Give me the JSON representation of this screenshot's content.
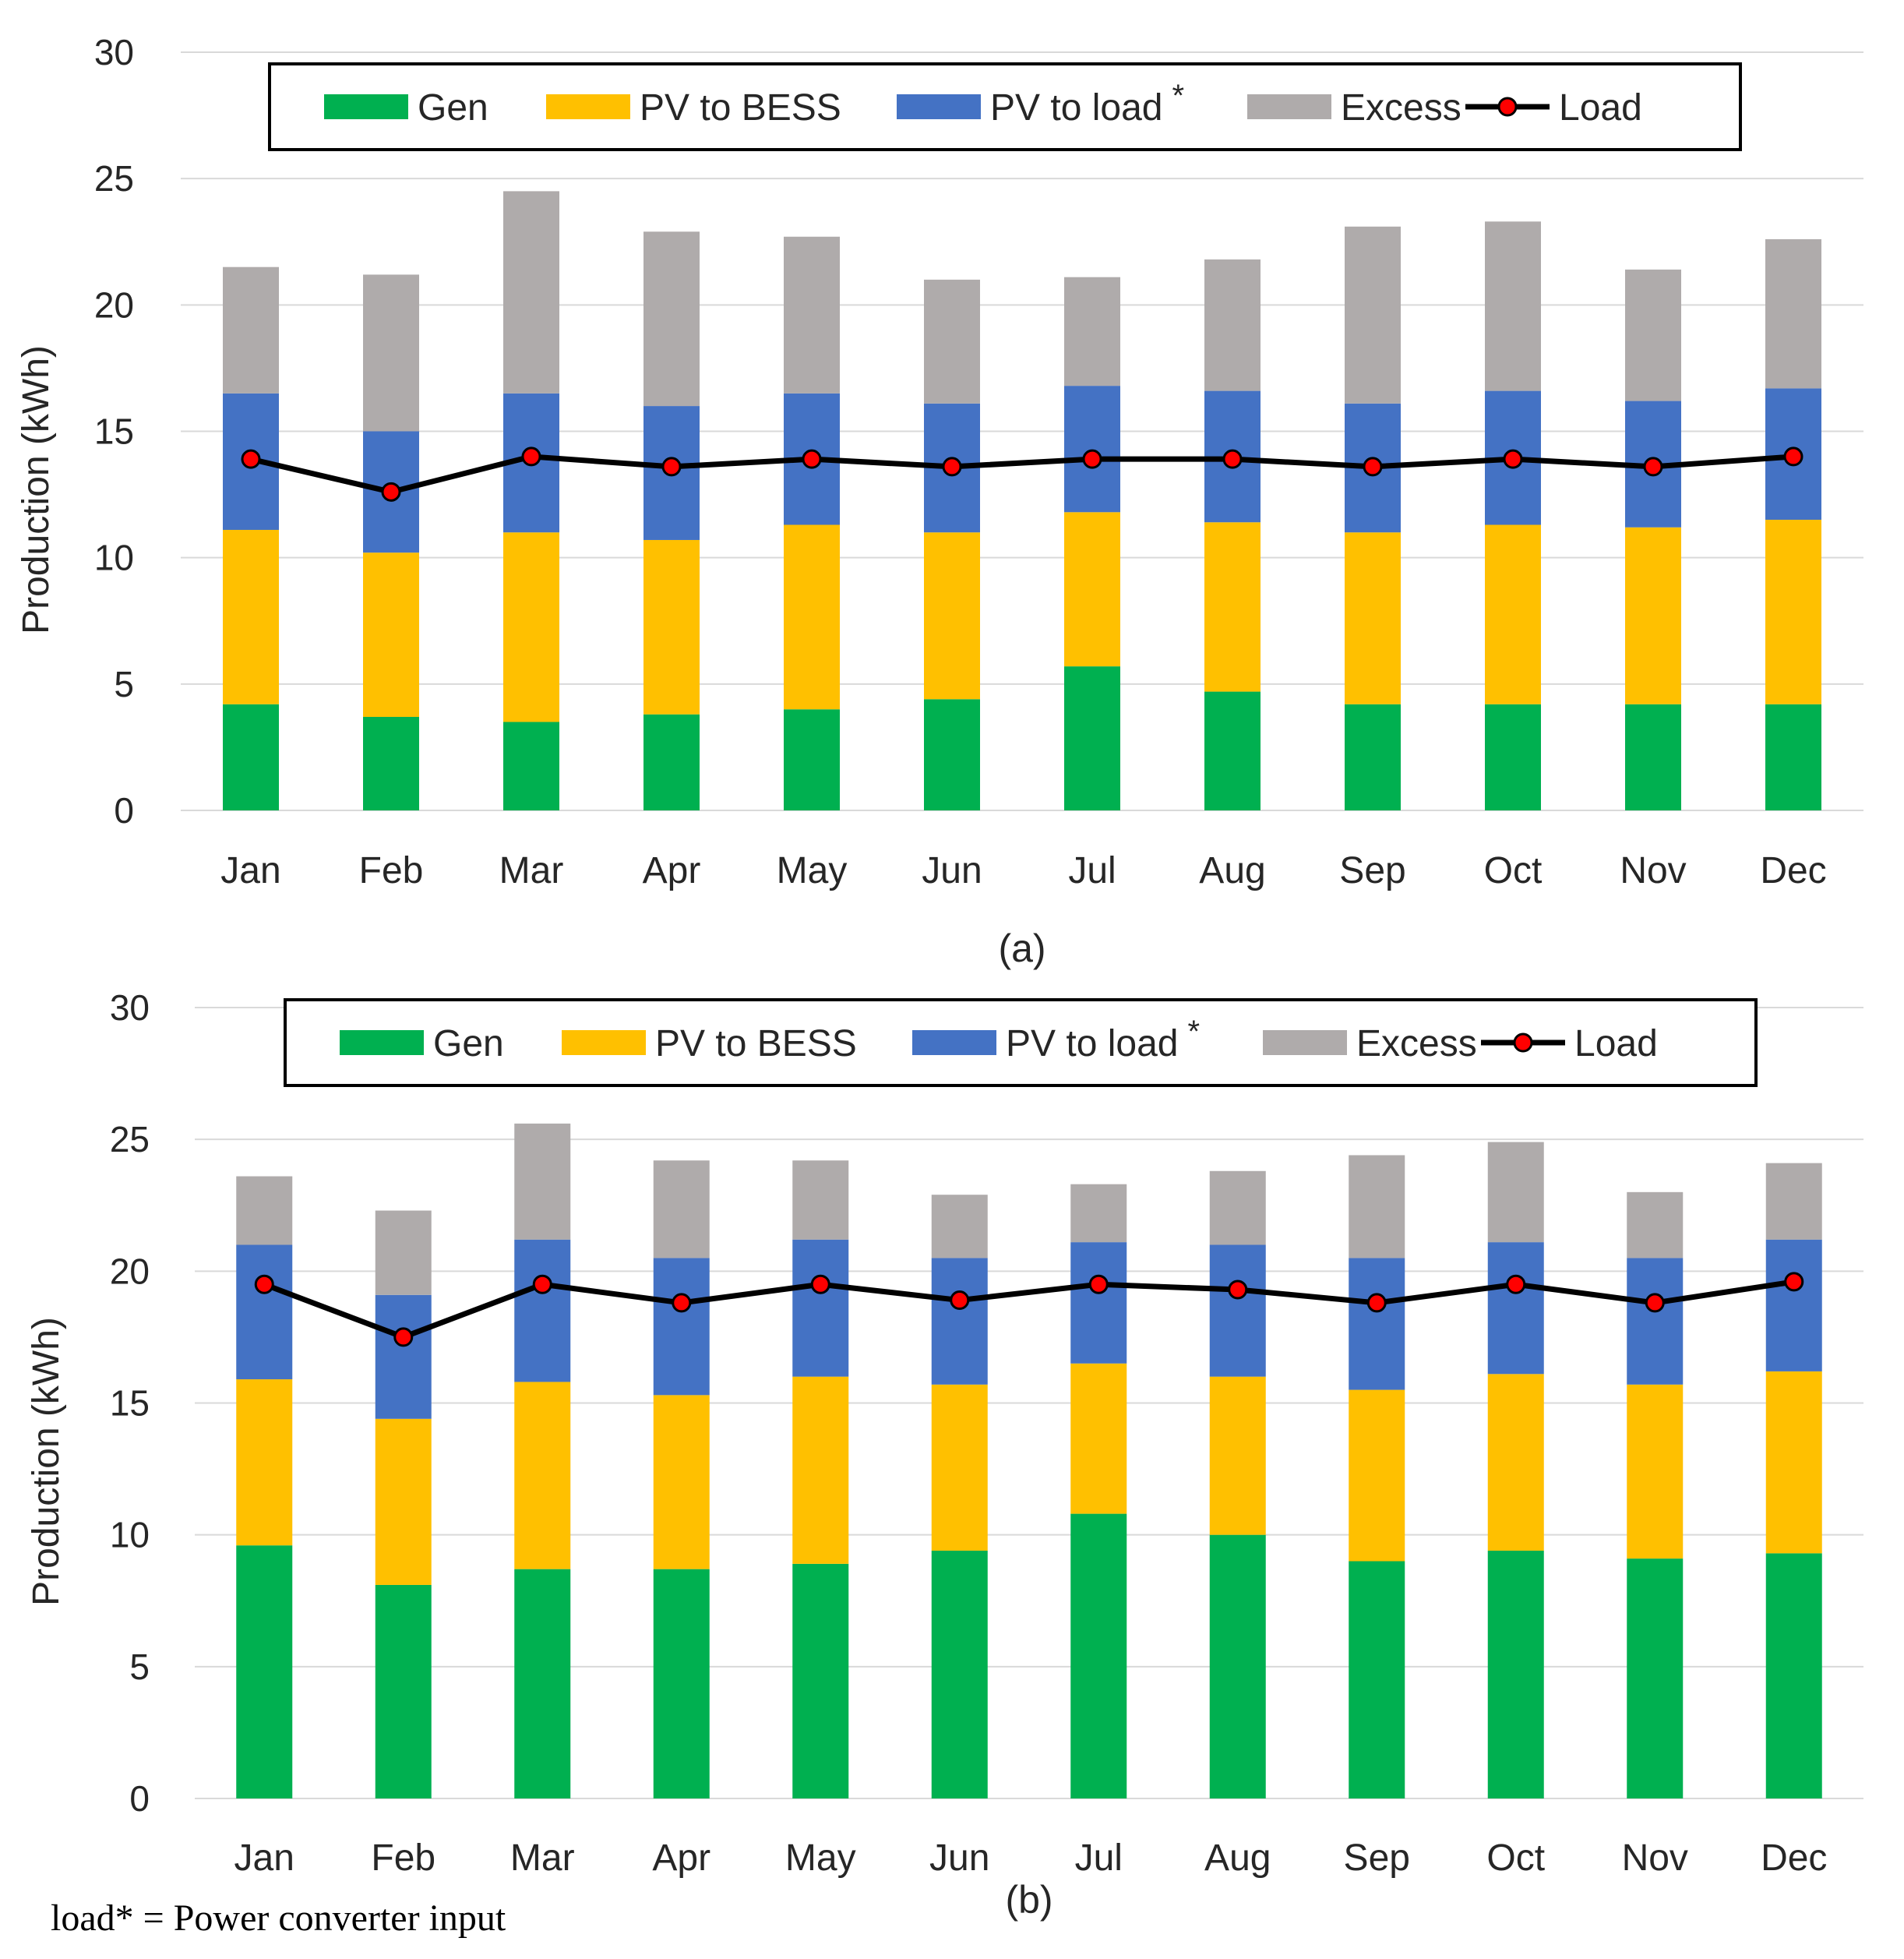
{
  "colors": {
    "gen": "#00b050",
    "pv_to_bess": "#ffc000",
    "pv_to_load": "#4472c4",
    "excess": "#afabab",
    "load_line": "#000000",
    "load_marker": "#ff0000",
    "grid": "#d9d9d9"
  },
  "footnote": "load* = Power converter input",
  "chart_data": [
    {
      "type": "bar",
      "stacked": true,
      "caption": "(a)",
      "ylabel": "Production (kWh)",
      "ylim": [
        0,
        30
      ],
      "yticks": [
        "0",
        "5",
        "10",
        "15",
        "20",
        "25",
        "30"
      ],
      "grid": true,
      "legend_position": "top",
      "legend": [
        {
          "label": "Gen",
          "key": "gen",
          "kind": "box"
        },
        {
          "label": "PV to BESS",
          "key": "pv_to_bess",
          "kind": "box"
        },
        {
          "label": "PV to load",
          "key": "pv_to_load",
          "kind": "box",
          "superscript": "*"
        },
        {
          "label": "Excess",
          "key": "excess",
          "kind": "box"
        },
        {
          "label": "Load",
          "key": "load",
          "kind": "line"
        }
      ],
      "categories": [
        "Jan",
        "Feb",
        "Mar",
        "Apr",
        "May",
        "Jun",
        "Jul",
        "Aug",
        "Sep",
        "Oct",
        "Nov",
        "Dec"
      ],
      "series": [
        {
          "name": "Gen",
          "key": "gen",
          "values": [
            4.2,
            3.7,
            3.5,
            3.8,
            4.0,
            4.4,
            5.7,
            4.7,
            4.2,
            4.2,
            4.2,
            4.2
          ]
        },
        {
          "name": "PV to BESS",
          "key": "pv_to_bess",
          "values": [
            6.9,
            6.5,
            7.5,
            6.9,
            7.3,
            6.6,
            6.1,
            6.7,
            6.8,
            7.1,
            7.0,
            7.3
          ]
        },
        {
          "name": "PV to load",
          "key": "pv_to_load",
          "values": [
            5.4,
            4.8,
            5.5,
            5.3,
            5.2,
            5.1,
            5.0,
            5.2,
            5.1,
            5.3,
            5.0,
            5.2
          ]
        },
        {
          "name": "Excess",
          "key": "excess",
          "values": [
            5.0,
            6.2,
            8.0,
            6.9,
            6.2,
            4.9,
            4.3,
            5.2,
            7.0,
            6.7,
            5.2,
            5.9
          ]
        }
      ],
      "line": {
        "name": "Load",
        "values": [
          13.9,
          12.6,
          14.0,
          13.6,
          13.9,
          13.6,
          13.9,
          13.9,
          13.6,
          13.9,
          13.6,
          14.0
        ]
      }
    },
    {
      "type": "bar",
      "stacked": true,
      "caption": "(b)",
      "ylabel": "Production (kWh)",
      "ylim": [
        0,
        30
      ],
      "yticks": [
        "0",
        "5",
        "10",
        "15",
        "20",
        "25",
        "30"
      ],
      "grid": true,
      "legend_position": "top",
      "legend": [
        {
          "label": "Gen",
          "key": "gen",
          "kind": "box"
        },
        {
          "label": "PV to BESS",
          "key": "pv_to_bess",
          "kind": "box"
        },
        {
          "label": "PV to load",
          "key": "pv_to_load",
          "kind": "box",
          "superscript": "*"
        },
        {
          "label": "Excess",
          "key": "excess",
          "kind": "box"
        },
        {
          "label": "Load",
          "key": "load",
          "kind": "line"
        }
      ],
      "categories": [
        "Jan",
        "Feb",
        "Mar",
        "Apr",
        "May",
        "Jun",
        "Jul",
        "Aug",
        "Sep",
        "Oct",
        "Nov",
        "Dec"
      ],
      "series": [
        {
          "name": "Gen",
          "key": "gen",
          "values": [
            9.6,
            8.1,
            8.7,
            8.7,
            8.9,
            9.4,
            10.8,
            10.0,
            9.0,
            9.4,
            9.1,
            9.3
          ]
        },
        {
          "name": "PV to BESS",
          "key": "pv_to_bess",
          "values": [
            6.3,
            6.3,
            7.1,
            6.6,
            7.1,
            6.3,
            5.7,
            6.0,
            6.5,
            6.7,
            6.6,
            6.9
          ]
        },
        {
          "name": "PV to load",
          "key": "pv_to_load",
          "values": [
            5.1,
            4.7,
            5.4,
            5.2,
            5.2,
            4.8,
            4.6,
            5.0,
            5.0,
            5.0,
            4.8,
            5.0
          ]
        },
        {
          "name": "Excess",
          "key": "excess",
          "values": [
            2.6,
            3.2,
            4.4,
            3.7,
            3.0,
            2.4,
            2.2,
            2.8,
            3.9,
            3.8,
            2.5,
            2.9
          ]
        }
      ],
      "line": {
        "name": "Load",
        "values": [
          19.5,
          17.5,
          19.5,
          18.8,
          19.5,
          18.9,
          19.5,
          19.3,
          18.8,
          19.5,
          18.8,
          19.6
        ]
      }
    }
  ]
}
